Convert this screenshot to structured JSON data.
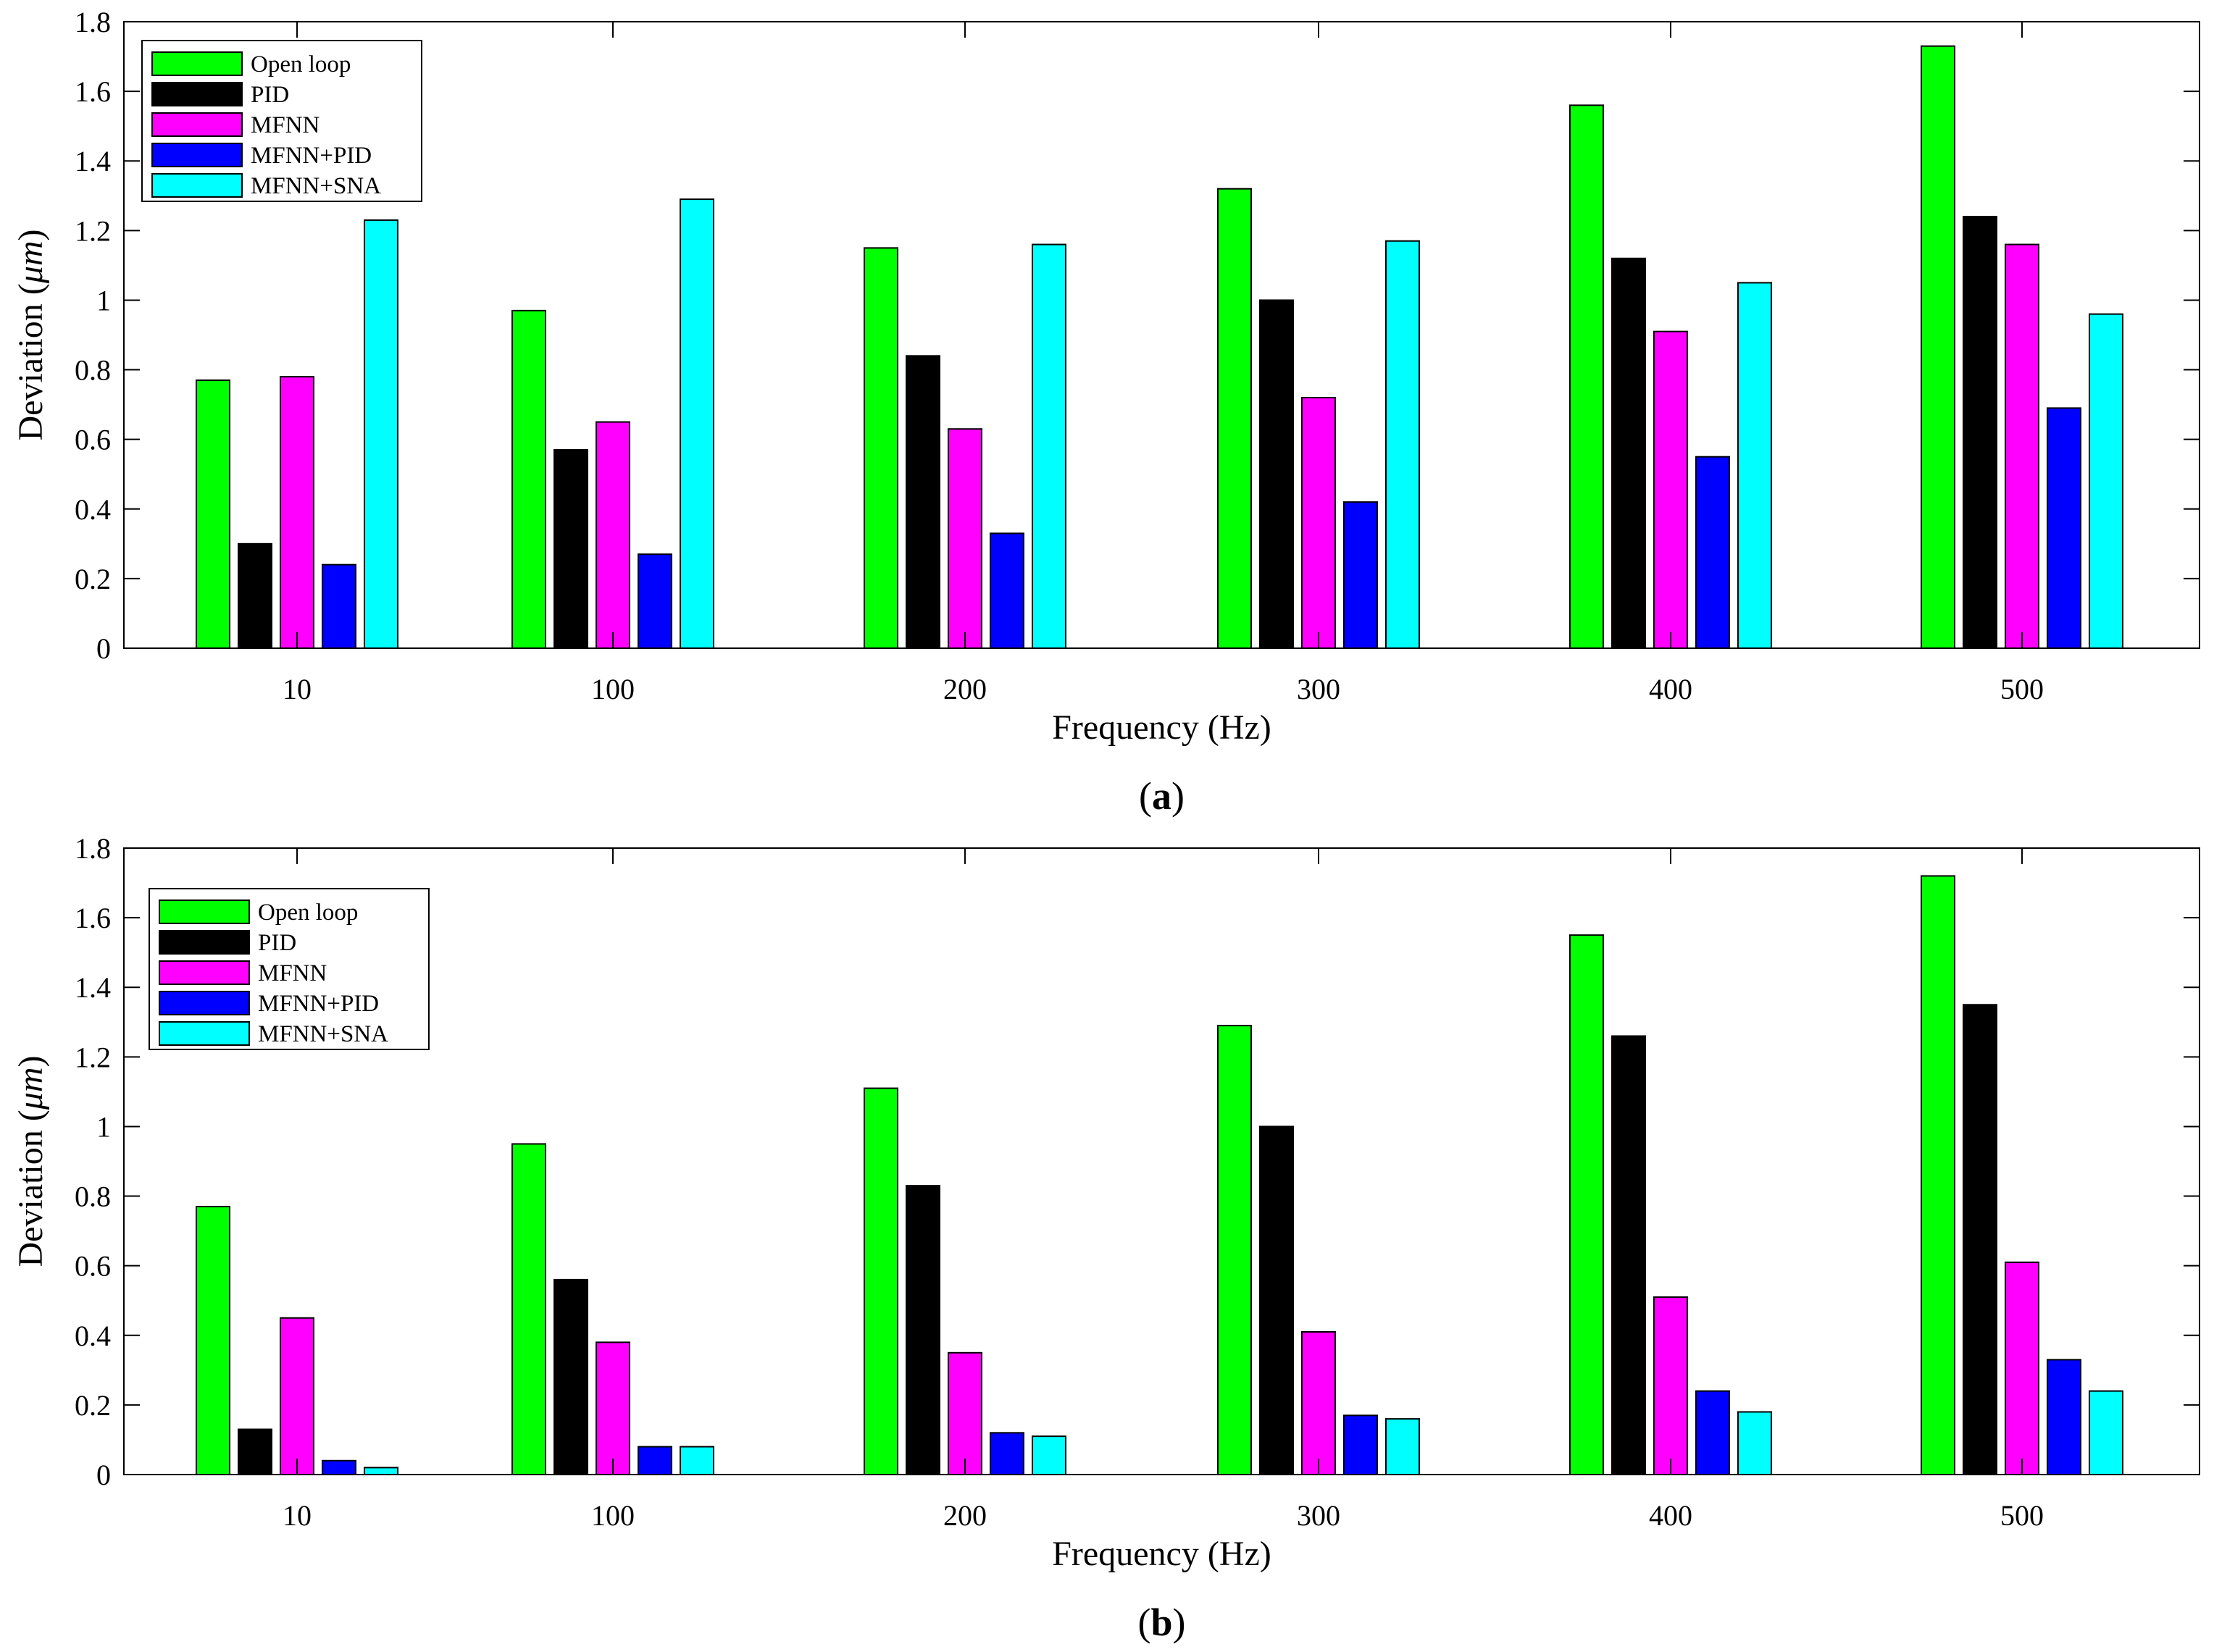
{
  "chart_data": [
    {
      "type": "bar",
      "panel_label": "a",
      "xlabel": "Frequency (Hz)",
      "ylabel": "Deviation (μm)",
      "ylabel_parts": [
        "Deviation (",
        "μm",
        ")"
      ],
      "ylim": [
        0,
        1.8
      ],
      "yticks": [
        "0",
        "0.2",
        "0.4",
        "0.6",
        "0.8",
        "1",
        "1.2",
        "1.4",
        "1.6",
        "1.8"
      ],
      "categories": [
        "10",
        "100",
        "200",
        "300",
        "400",
        "500"
      ],
      "legend_position": "top-left",
      "grid": false,
      "series": [
        {
          "name": "Open loop",
          "color": "#00ff00",
          "values": [
            0.77,
            0.97,
            1.15,
            1.32,
            1.56,
            1.73
          ]
        },
        {
          "name": "PID",
          "color": "#000000",
          "values": [
            0.3,
            0.57,
            0.84,
            1.0,
            1.12,
            1.24
          ]
        },
        {
          "name": "MFNN",
          "color": "#ff00ff",
          "values": [
            0.78,
            0.65,
            0.63,
            0.72,
            0.91,
            1.16
          ]
        },
        {
          "name": "MFNN+PID",
          "color": "#0000ff",
          "values": [
            0.24,
            0.27,
            0.33,
            0.42,
            0.55,
            0.69
          ]
        },
        {
          "name": "MFNN+SNA",
          "color": "#00ffff",
          "values": [
            1.23,
            1.29,
            1.16,
            1.17,
            1.05,
            0.96
          ]
        }
      ]
    },
    {
      "type": "bar",
      "panel_label": "b",
      "xlabel": "Frequency (Hz)",
      "ylabel": "Deviation (μm)",
      "ylabel_parts": [
        "Deviation (",
        "μm",
        ")"
      ],
      "ylim": [
        0,
        1.8
      ],
      "yticks": [
        "0",
        "0.2",
        "0.4",
        "0.6",
        "0.8",
        "1",
        "1.2",
        "1.4",
        "1.6",
        "1.8"
      ],
      "categories": [
        "10",
        "100",
        "200",
        "300",
        "400",
        "500"
      ],
      "legend_position": "top-left",
      "grid": false,
      "series": [
        {
          "name": "Open loop",
          "color": "#00ff00",
          "values": [
            0.77,
            0.95,
            1.11,
            1.29,
            1.55,
            1.72
          ]
        },
        {
          "name": "PID",
          "color": "#000000",
          "values": [
            0.13,
            0.56,
            0.83,
            1.0,
            1.26,
            1.35
          ]
        },
        {
          "name": "MFNN",
          "color": "#ff00ff",
          "values": [
            0.45,
            0.38,
            0.35,
            0.41,
            0.51,
            0.61
          ]
        },
        {
          "name": "MFNN+PID",
          "color": "#0000ff",
          "values": [
            0.04,
            0.08,
            0.12,
            0.17,
            0.24,
            0.33
          ]
        },
        {
          "name": "MFNN+SNA",
          "color": "#00ffff",
          "values": [
            0.02,
            0.08,
            0.11,
            0.16,
            0.18,
            0.24
          ]
        }
      ]
    }
  ]
}
